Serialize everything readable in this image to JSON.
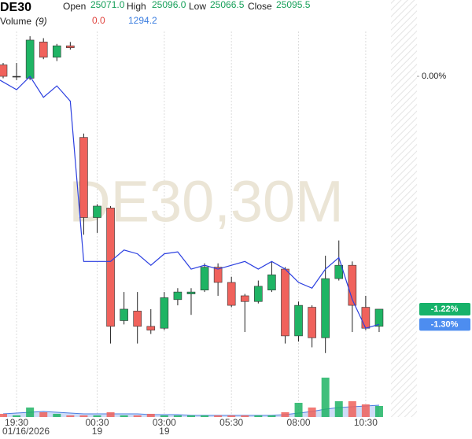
{
  "chart_data": {
    "type": "candlestick",
    "title": "DE30",
    "header": {
      "open_label": "Open",
      "open": "25071.0",
      "high_label": "High",
      "high": "25096.0",
      "low_label": "Low",
      "low": "25066.5",
      "close_label": "Close",
      "close": "25095.5"
    },
    "volume_header": {
      "label": "Volume",
      "period": "(9)",
      "value": "0.0",
      "ma_value": "1294.2"
    },
    "watermark": "DE30,30M",
    "categories": [
      null,
      "19:30",
      null,
      null,
      null,
      null,
      null,
      "00:30",
      null,
      null,
      null,
      null,
      "03:00",
      null,
      null,
      null,
      null,
      "05:30",
      null,
      null,
      null,
      null,
      "08:00",
      null,
      null,
      null,
      null,
      "10:30",
      null
    ],
    "subcategories": [
      null,
      "01/16/2026",
      null,
      null,
      null,
      null,
      null,
      "19",
      null,
      null,
      null,
      null,
      "19",
      null,
      null,
      null,
      null,
      null,
      null,
      null,
      null,
      null,
      null,
      null,
      null,
      null,
      null,
      null,
      null
    ],
    "open": [
      0.06,
      0,
      -0.01,
      0.18,
      0.1,
      0.16,
      -0.32,
      -0.74,
      -0.69,
      -1.28,
      -1.23,
      -1.31,
      -1.32,
      -1.17,
      -1.14,
      -1.12,
      -1.0,
      -1.08,
      -1.15,
      -1.18,
      -1.12,
      -1.01,
      -1.36,
      -1.21,
      -1.37,
      -1.06,
      -0.99,
      -1.21,
      -1.31
    ],
    "high": [
      0.07,
      0.07,
      0.21,
      0.2,
      0.17,
      0.18,
      -0.3,
      -0.67,
      -0.68,
      -1.13,
      -1.13,
      -1.22,
      -1.13,
      -1.11,
      -1.11,
      -0.98,
      -0.98,
      -1.05,
      -1.14,
      -1.07,
      -0.97,
      -1.0,
      -1.18,
      -1.2,
      -0.94,
      -0.86,
      -0.97,
      -1.15,
      -1.22
    ],
    "low": [
      -0.01,
      -0.02,
      -0.02,
      0.09,
      0.08,
      0.14,
      -0.83,
      -0.82,
      -1.4,
      -1.3,
      -1.4,
      -1.35,
      -1.33,
      -1.2,
      -1.25,
      -1.13,
      -1.15,
      -1.21,
      -1.34,
      -1.19,
      -1.13,
      -1.4,
      -1.39,
      -1.42,
      -1.45,
      -1.07,
      -1.34,
      -1.33,
      -1.34
    ],
    "close": [
      0,
      0,
      0.19,
      0.1,
      0.16,
      0.15,
      -0.74,
      -0.68,
      -1.31,
      -1.22,
      -1.31,
      -1.33,
      -1.16,
      -1.13,
      -1.13,
      -1.0,
      -1.08,
      -1.2,
      -1.18,
      -1.1,
      -1.04,
      -1.36,
      -1.2,
      -1.37,
      -1.06,
      -0.99,
      -1.2,
      -1.32,
      -1.22
    ],
    "line": {
      "color": "#2b3fe0",
      "values": [
        -0.02,
        -0.07,
        0,
        -0.11,
        -0.05,
        -0.13,
        -0.97,
        -0.97,
        -0.97,
        -0.91,
        -0.93,
        -0.99,
        -0.93,
        -0.92,
        -1.01,
        -0.99,
        -1.01,
        -0.99,
        -0.97,
        -1.01,
        -0.97,
        -1.01,
        -1.08,
        -1.11,
        -1.01,
        -0.95,
        -1.17,
        -1.32,
        -1.3
      ]
    },
    "volume": [
      4,
      2,
      12,
      6,
      4,
      2,
      2,
      2,
      6,
      2,
      2,
      4,
      2,
      2,
      2,
      2,
      2,
      2,
      2,
      2,
      2,
      6,
      18,
      12,
      50,
      20,
      20,
      16,
      14
    ],
    "volume_ma": [
      4,
      5,
      6,
      7,
      6,
      5,
      4,
      4,
      4,
      4,
      4,
      3,
      3,
      3,
      2,
      2,
      2,
      2,
      2,
      2,
      2,
      3,
      5,
      7,
      10,
      12,
      13,
      14,
      15
    ],
    "volume_lim": [
      0,
      60
    ],
    "ylim": [
      -1.55,
      0.4
    ],
    "yticks": [
      {
        "value": 0,
        "label": "0.00%"
      }
    ],
    "last_close": {
      "value": -1.22,
      "label": "-1.22%",
      "color": "#17b26a"
    },
    "last_line": {
      "value": -1.3,
      "label": "-1.30%",
      "color": "#4d8df0"
    },
    "up_color": "#1fb464",
    "down_color": "#f0625c",
    "grid": true
  }
}
